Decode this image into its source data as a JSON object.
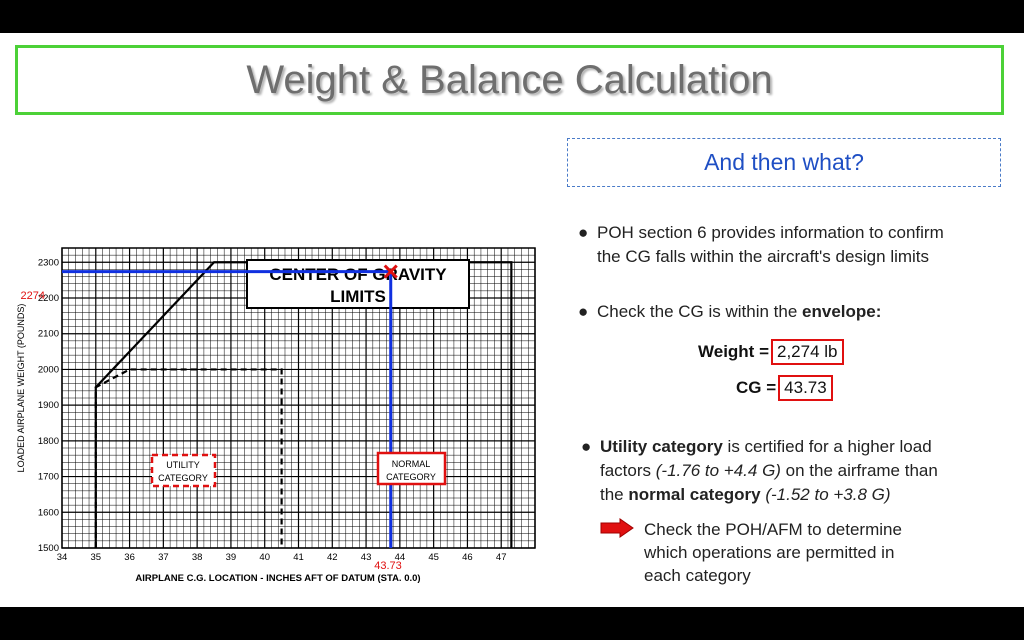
{
  "slide": {
    "title": "Weight & Balance Calculation",
    "subheading": "And then what?"
  },
  "bullets": {
    "poh_line1": "POH section 6 provides information to confirm",
    "poh_line2": "the CG falls within the aircraft's design limits",
    "check_prefix": "Check the CG is within the ",
    "check_bold": "envelope:",
    "weight_label": "Weight =",
    "weight_value": "2,274 lb",
    "cg_label": "CG =",
    "cg_value": "43.73",
    "util_bold": "Utility category",
    "util_text1": " is certified for a higher load",
    "util_text2": "factors ",
    "util_italic": "(-1.76 to +4.4 G)",
    "util_text3": " on the airframe than",
    "util_text4": "the ",
    "normal_bold": "normal category",
    "normal_italic": " (-1.52 to +3.8 G)",
    "arrow_line1": "Check the POH/AFM to determine",
    "arrow_line2": "which operations are permitted in",
    "arrow_line3": "each category"
  },
  "colors": {
    "title_border": "#4cd137",
    "accent_blue": "#1f4fc4",
    "highlight_red": "#e01010",
    "plot_blue": "#1030e0"
  },
  "chart": {
    "box_title_line1": "CENTER OF GRAVITY",
    "box_title_line2": "LIMITS",
    "utility_line1": "UTILITY",
    "utility_line2": "CATEGORY",
    "normal_line1": "NORMAL",
    "normal_line2": "CATEGORY",
    "x_axis_label": "AIRPLANE C.G. LOCATION - INCHES AFT OF DATUM (STA. 0.0)",
    "y_axis_label": "LOADED AIRPLANE WEIGHT (POUNDS)",
    "marker_weight_label": "2274",
    "marker_cg_label": "43.73"
  },
  "chart_data": {
    "type": "line",
    "title": "CENTER OF GRAVITY LIMITS",
    "xlabel": "AIRPLANE C.G. LOCATION - INCHES AFT OF DATUM (STA. 0.0)",
    "ylabel": "LOADED AIRPLANE WEIGHT (POUNDS)",
    "xlim": [
      34,
      48
    ],
    "ylim": [
      1500,
      2300
    ],
    "x_ticks": [
      "34",
      "35",
      "36",
      "37",
      "38",
      "39",
      "40",
      "41",
      "42",
      "43",
      "44",
      "45",
      "46",
      "47"
    ],
    "y_ticks": [
      "1500",
      "1600",
      "1700",
      "1800",
      "1900",
      "2000",
      "2100",
      "2200",
      "2300"
    ],
    "grid": true,
    "series": [
      {
        "name": "NORMAL CATEGORY",
        "style": "solid",
        "points": [
          [
            35.0,
            1500
          ],
          [
            35.0,
            1950
          ],
          [
            38.5,
            2300
          ],
          [
            47.3,
            2300
          ],
          [
            47.3,
            1500
          ]
        ]
      },
      {
        "name": "UTILITY CATEGORY",
        "style": "dashed",
        "points": [
          [
            35.0,
            1500
          ],
          [
            35.0,
            1950
          ],
          [
            36.0,
            2000
          ],
          [
            40.5,
            2000
          ],
          [
            40.5,
            1500
          ]
        ]
      }
    ],
    "marker": {
      "x": 43.73,
      "y": 2274
    }
  }
}
